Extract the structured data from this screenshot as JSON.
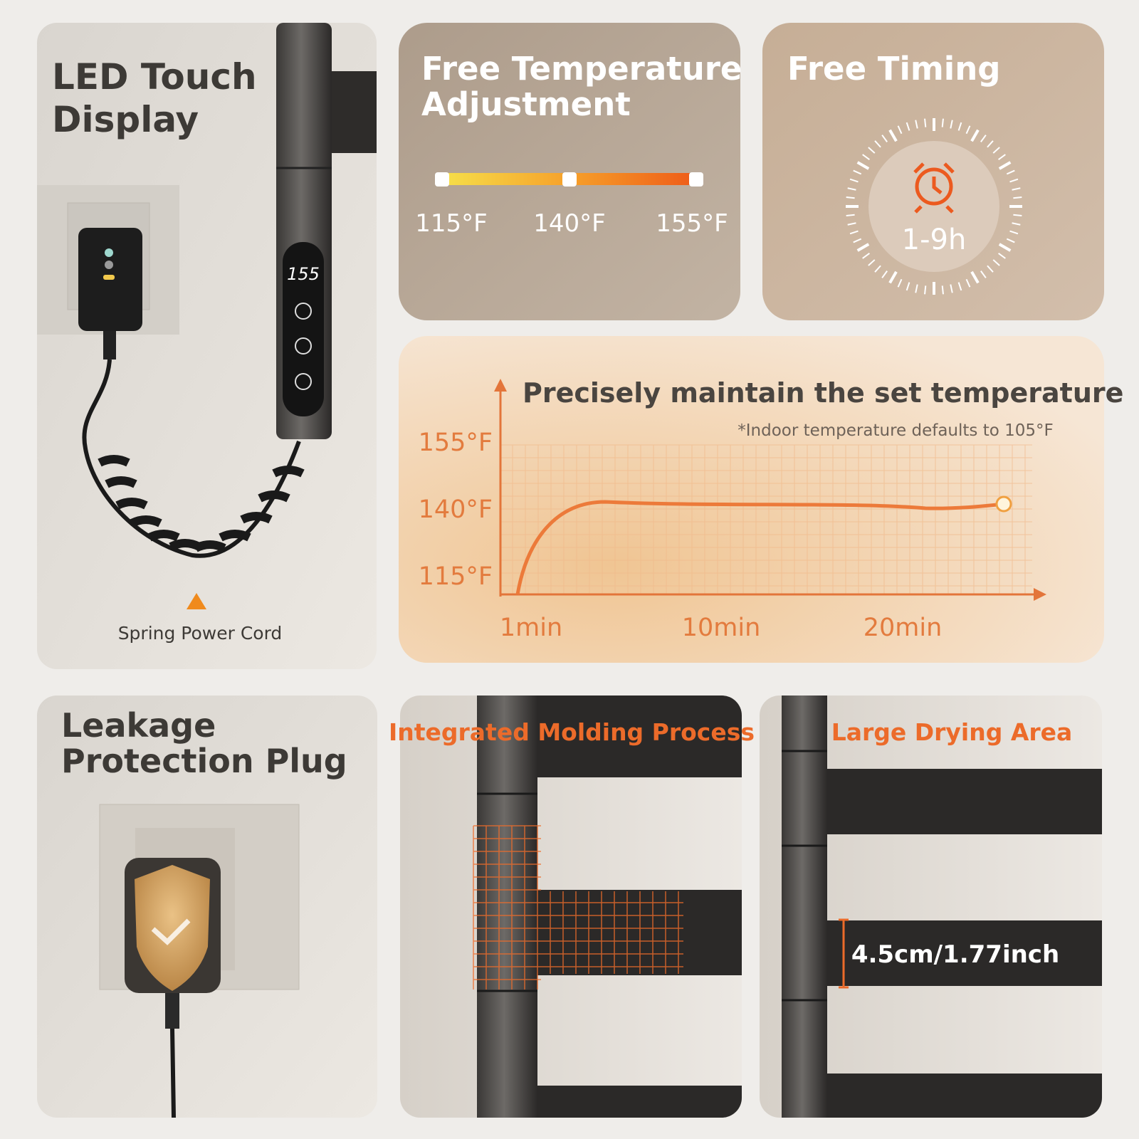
{
  "led_display": {
    "title_lines": [
      "LED Touch",
      "Display"
    ],
    "screen_reading": "155",
    "caption": "Spring Power Cord"
  },
  "temperature": {
    "title_lines": [
      "Free Temperature",
      "Adjustment"
    ],
    "labels": [
      "115°F",
      "140°F",
      "155°F"
    ]
  },
  "timing": {
    "title": "Free Timing",
    "range": "1-9h"
  },
  "maintain": {
    "title": "Precisely maintain the set temperature",
    "note": "*Indoor temperature defaults to 105°F",
    "y_labels": [
      "155°F",
      "140°F",
      "115°F"
    ],
    "x_labels": [
      "1min",
      "10min",
      "20min"
    ]
  },
  "leakage": {
    "title_lines": [
      "Leakage",
      "Protection Plug"
    ]
  },
  "molding": {
    "title": "Integrated Molding Process"
  },
  "drying": {
    "title": "Large Drying Area",
    "dimension": "4.5cm/1.77inch"
  }
}
